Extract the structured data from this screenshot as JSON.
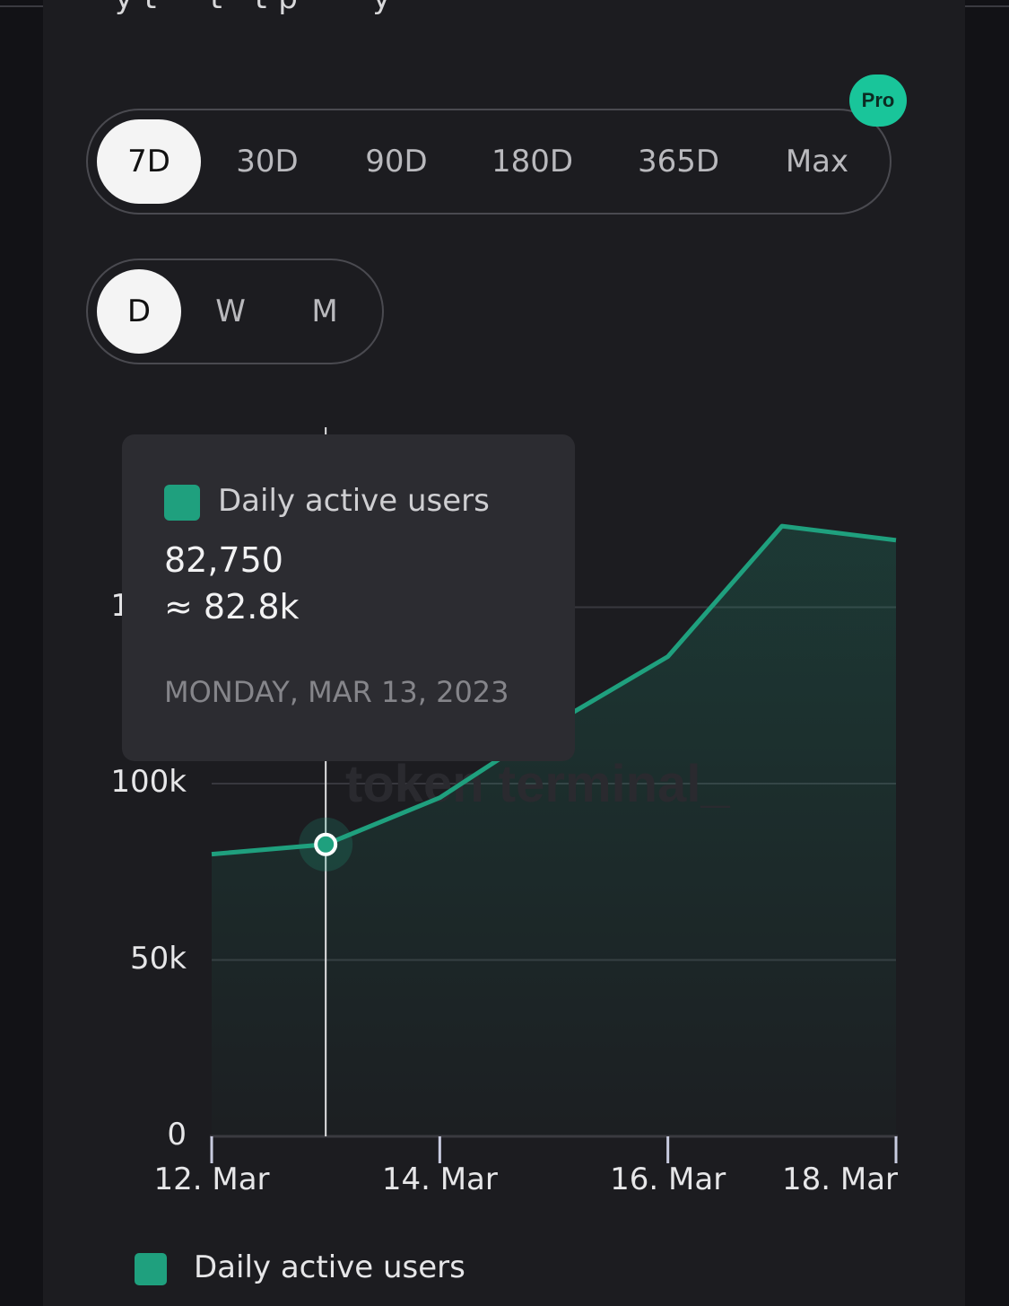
{
  "header": {
    "cut_text": "y  t  ·  ·  t  ·  t      p  ·    ·  ·  y  ·"
  },
  "range_selector": {
    "options": [
      "7D",
      "30D",
      "90D",
      "180D",
      "365D",
      "Max"
    ],
    "selected": "7D",
    "pro_badge": "Pro"
  },
  "granularity_selector": {
    "options": [
      "D",
      "W",
      "M"
    ],
    "selected": "D"
  },
  "tooltip": {
    "series_name": "Daily active users",
    "value": "82,750",
    "approx": "≈ 82.8k",
    "date": "MONDAY, MAR 13, 2023"
  },
  "legend": {
    "label": "Daily active users"
  },
  "colors": {
    "series": "#1fa07e",
    "pro_badge": "#19c59a"
  },
  "chart_data": {
    "type": "area",
    "x": [
      "2023-03-12",
      "2023-03-13",
      "2023-03-14",
      "2023-03-15",
      "2023-03-16",
      "2023-03-17",
      "2023-03-18"
    ],
    "series": [
      {
        "name": "Daily active users",
        "values": [
          80000,
          82750,
          96000,
          117000,
          136000,
          173000,
          169000
        ]
      }
    ],
    "ylim": [
      0,
      200000
    ],
    "y_ticks": [
      0,
      50000,
      100000,
      150000
    ],
    "y_tick_labels": [
      "0",
      "50k",
      "100k",
      "150k"
    ],
    "x_tick_labels": [
      "12. Mar",
      "14. Mar",
      "16. Mar",
      "18. Mar"
    ],
    "x_tick_dates": [
      "2023-03-12",
      "2023-03-14",
      "2023-03-16",
      "2023-03-18"
    ],
    "watermark": "token terminal_",
    "highlighted_date": "2023-03-13",
    "grid": true,
    "legend_position": "bottom"
  }
}
